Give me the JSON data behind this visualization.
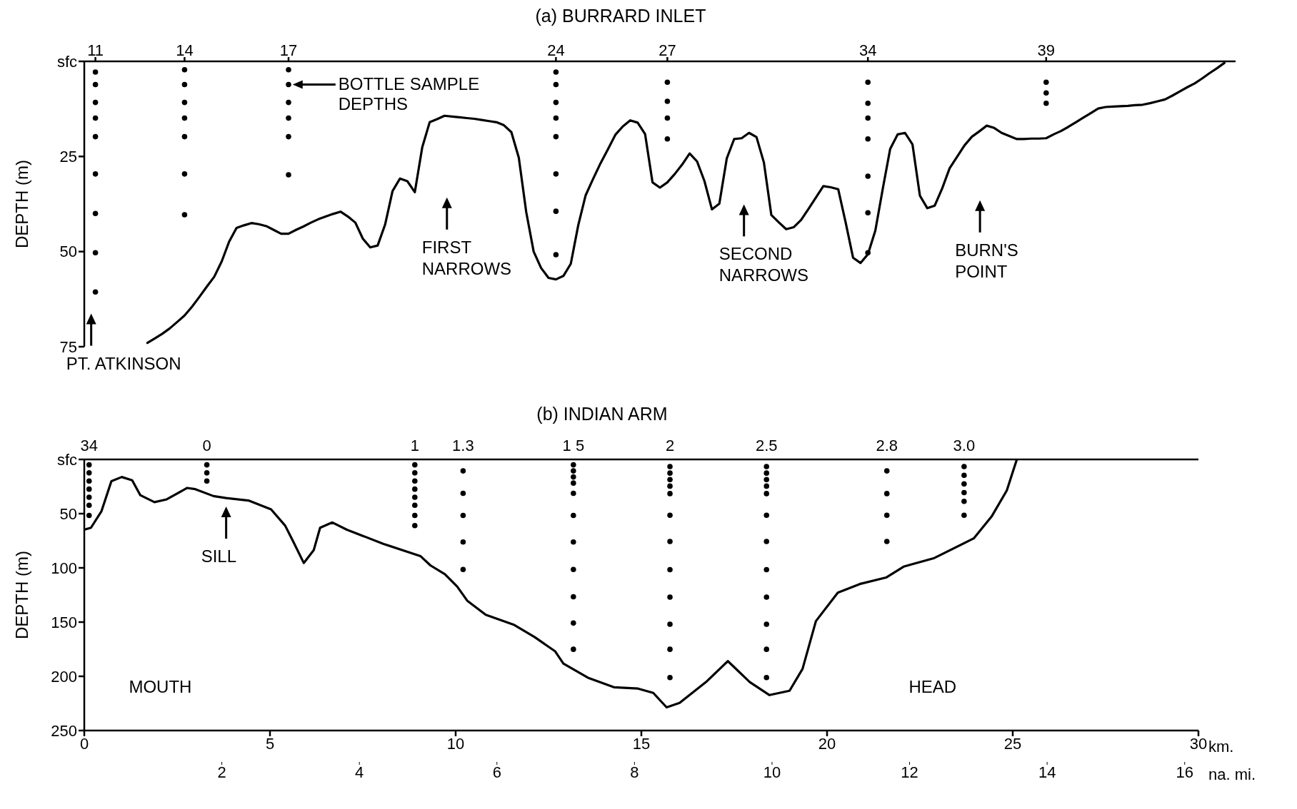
{
  "chart_data": [
    {
      "type": "line",
      "title": "(a) BURRARD INLET",
      "ylabel": "DEPTH (m)",
      "ylim": [
        75,
        0
      ],
      "yticks": [
        {
          "value": 0,
          "label": "sfc"
        },
        25,
        50,
        75
      ],
      "categories": [
        null,
        "11",
        null,
        null,
        null,
        null,
        null,
        null,
        null,
        null,
        null,
        null,
        null,
        "14",
        null,
        null,
        null,
        null,
        null,
        null,
        null,
        null,
        null,
        null,
        null,
        null,
        null,
        "17",
        null,
        null,
        null,
        null,
        null,
        null,
        null,
        null,
        null,
        null,
        null,
        null,
        null,
        null,
        null,
        null,
        null,
        null,
        null,
        null,
        null,
        null,
        null,
        null,
        null,
        null,
        null,
        null,
        null,
        null,
        null,
        null,
        null,
        null,
        null,
        "24",
        null,
        null,
        null,
        null,
        null,
        null,
        null,
        null,
        null,
        null,
        null,
        null,
        null,
        null,
        "27",
        null,
        null,
        null,
        null,
        null,
        null,
        null,
        null,
        null,
        null,
        null,
        null,
        null,
        null,
        null,
        null,
        null,
        null,
        null,
        null,
        null,
        null,
        null,
        null,
        null,
        null,
        "34",
        null,
        null,
        null,
        null,
        null,
        null,
        null,
        null,
        null,
        null,
        null,
        null,
        null,
        null,
        null,
        null,
        null,
        null,
        null,
        null,
        null,
        null,
        null,
        "39",
        null,
        null,
        null,
        null,
        null,
        null,
        null,
        null,
        null,
        null,
        null,
        null,
        null,
        null,
        null,
        null,
        null,
        null,
        null,
        null,
        null,
        null,
        null,
        null,
        null
      ],
      "annotations": [
        "BOTTLE  SAMPLE\nDEPTHS",
        "FIRST\nNARROWS",
        "SECOND\nNARROWS",
        "BURN'S\nPOINT",
        "PT.  ATKINSON"
      ],
      "series": [
        {
          "color": "#000000",
          "marker": "none",
          "values": [
            null,
            null,
            null,
            null,
            null,
            null,
            null,
            null,
            74.0,
            72.8,
            71.6,
            70.2,
            68.5,
            66.8,
            64.5,
            61.9,
            59.2,
            56.6,
            52.6,
            47.4,
            43.8,
            43.1,
            42.5,
            42.8,
            43.3,
            44.3,
            45.3,
            45.3,
            44.3,
            43.4,
            42.4,
            41.5,
            40.8,
            40.1,
            39.5,
            40.8,
            42.4,
            46.6,
            48.9,
            48.4,
            42.9,
            34.1,
            30.8,
            31.5,
            34.4,
            22.6,
            16.0,
            15.2,
            14.3,
            14.5,
            14.7,
            14.9,
            15.1,
            15.4,
            15.7,
            16.0,
            16.8,
            18.6,
            25.3,
            39.6,
            50.0,
            54.3,
            56.9,
            57.3,
            56.4,
            53.2,
            43.1,
            35.2,
            30.9,
            26.8,
            23.1,
            19.3,
            17.1,
            15.5,
            16.1,
            19.1,
            31.8,
            33.2,
            31.8,
            29.6,
            27.1,
            24.2,
            26.3,
            31.5,
            38.9,
            37.4,
            25.5,
            20.4,
            20.2,
            18.8,
            19.9,
            26.6,
            40.4,
            42.3,
            44.1,
            43.6,
            41.7,
            38.8,
            35.8,
            32.8,
            33.1,
            33.6,
            42.3,
            51.6,
            53.0,
            50.7,
            44.5,
            33.5,
            23.0,
            19.2,
            18.8,
            21.8,
            35.3,
            38.6,
            37.9,
            33.4,
            28.1,
            25.1,
            22.1,
            19.8,
            18.4,
            16.9,
            17.5,
            18.8,
            19.6,
            20.4,
            20.4,
            20.3,
            20.3,
            20.2,
            19.2,
            18.3,
            17.2,
            16.0,
            14.8,
            13.6,
            12.4,
            12.0,
            11.9,
            11.8,
            11.7,
            11.5,
            11.4,
            11.0,
            10.5,
            10.0,
            9.0,
            7.9,
            6.8,
            5.8,
            4.5,
            3.1,
            1.8,
            0.4,
            null
          ]
        },
        {
          "type": "scatter",
          "color": "#000000",
          "marker": "circle",
          "x": [
            "11",
            "11",
            "11",
            "11",
            "11",
            "11",
            "11",
            "11",
            "11",
            "14",
            "14",
            "14",
            "14",
            "14",
            "14",
            "14",
            "17",
            "17",
            "17",
            "17",
            "17",
            "17",
            "24",
            "24",
            "24",
            "24",
            "24",
            "24",
            "24",
            "24",
            "27",
            "27",
            "27",
            "27",
            "34",
            "34",
            "34",
            "34",
            "34",
            "34",
            "34",
            "39",
            "39",
            "39"
          ],
          "values": [
            2.8,
            6.1,
            10.8,
            14.9,
            19.8,
            29.6,
            40,
            50.3,
            60.6,
            2.2,
            6.1,
            10.8,
            14.9,
            19.8,
            29.6,
            40.3,
            2.2,
            6.1,
            10.8,
            14.9,
            19.8,
            29.8,
            2.8,
            6.1,
            10.8,
            14.9,
            19.8,
            29.6,
            39.4,
            50.8,
            5.5,
            10.5,
            14.9,
            20.4,
            5.5,
            11,
            14.9,
            20.4,
            30.2,
            39.8,
            50.3,
            5.5,
            8.3,
            11
          ]
        }
      ]
    },
    {
      "type": "line",
      "title": "(b) INDIAN ARM",
      "ylabel": "DEPTH (m)",
      "xlabel": "km.",
      "xlim": [
        0,
        30
      ],
      "xticks": [
        0,
        5,
        10,
        15,
        20,
        25,
        30
      ],
      "ylim": [
        250,
        0
      ],
      "yticks": [
        {
          "value": 0,
          "label": "sfc"
        },
        50,
        100,
        150,
        200,
        250
      ],
      "x2label": "na. mi.",
      "x2lim": [
        0,
        16.2
      ],
      "x2ticks": [
        2,
        4,
        6,
        8,
        10,
        12,
        14,
        16
      ],
      "annotations": [
        {
          "text": "SILL",
          "x": 3.82,
          "y": 35.6
        },
        "34",
        "0",
        "1",
        "1.3",
        "1 5",
        "2",
        "2.5",
        "2.8",
        "3.0",
        "MOUTH",
        "HEAD"
      ],
      "series": [
        {
          "color": "#000000",
          "marker": "none",
          "x": [
            0,
            0.18,
            0.46,
            0.73,
            1.01,
            1.29,
            1.51,
            1.89,
            2.22,
            2.77,
            2.99,
            3.48,
            3.82,
            4.42,
            5.03,
            5.41,
            5.63,
            5.91,
            6.18,
            6.35,
            6.68,
            7.07,
            8.06,
            9.05,
            9.32,
            9.71,
            10.04,
            10.31,
            10.81,
            11.58,
            12.13,
            12.68,
            12.9,
            13.56,
            14.26,
            14.91,
            15.32,
            15.68,
            16.03,
            16.74,
            17.33,
            17.92,
            18.45,
            18.99,
            19.34,
            19.7,
            20.29,
            20.88,
            21.59,
            22.06,
            22.89,
            23.95,
            24.43,
            24.84,
            25.11
          ],
          "values": [
            64.8,
            63,
            48,
            20,
            16.2,
            19.2,
            33,
            39.4,
            36.8,
            26.3,
            27.4,
            33.8,
            35.6,
            37.9,
            46.1,
            61.1,
            76,
            95.5,
            83.5,
            63,
            58.1,
            64.8,
            77.9,
            89.1,
            97.7,
            105.9,
            117.2,
            130.2,
            143.3,
            152.7,
            163.9,
            177,
            188.2,
            201.3,
            210.1,
            211.3,
            215.3,
            228.6,
            224.5,
            205.3,
            186,
            205.3,
            217.3,
            213.3,
            193.2,
            149.1,
            122.9,
            114.9,
            108.9,
            98.9,
            90.9,
            72.8,
            52.7,
            28.6,
            0
          ]
        },
        {
          "type": "scatter",
          "color": "#000000",
          "marker": "circle",
          "x": [
            0.13,
            0.13,
            0.13,
            0.13,
            0.13,
            0.13,
            0.13,
            3.3,
            3.3,
            3.3,
            8.9,
            8.9,
            8.9,
            8.9,
            8.9,
            8.9,
            8.9,
            8.9,
            10.2,
            10.2,
            10.2,
            10.2,
            10.2,
            13.17,
            13.17,
            13.17,
            13.17,
            13.17,
            13.17,
            13.17,
            13.17,
            13.17,
            13.17,
            13.17,
            15.77,
            15.77,
            15.77,
            15.77,
            15.77,
            15.77,
            15.77,
            15.77,
            15.77,
            15.77,
            15.77,
            15.77,
            18.37,
            18.37,
            18.37,
            18.37,
            18.37,
            18.37,
            18.37,
            18.37,
            18.37,
            18.37,
            18.37,
            18.37,
            21.61,
            21.61,
            21.61,
            21.61,
            23.69,
            23.69,
            23.69,
            23.69,
            23.69,
            23.69
          ],
          "values": [
            5,
            12.4,
            19.9,
            27.4,
            34.9,
            42.3,
            51.7,
            5,
            12.4,
            19.9,
            5,
            12.4,
            19.9,
            27.4,
            34.9,
            42.3,
            51.7,
            61,
            10.6,
            31.2,
            51.7,
            76.1,
            101.5,
            5,
            10.6,
            16.2,
            21.8,
            31.2,
            51.7,
            76.1,
            101.5,
            126.6,
            150.9,
            175.1,
            6.6,
            12.6,
            18.6,
            24.6,
            31.5,
            51.5,
            75.6,
            101.7,
            127,
            152,
            175.1,
            201.2,
            6.6,
            12.6,
            18.6,
            24.6,
            31.5,
            51.5,
            75.6,
            101.7,
            127,
            152,
            175.1,
            201.2,
            10.6,
            31.5,
            51.5,
            75.6,
            6.6,
            14.6,
            22.6,
            30.6,
            38.6,
            51.5
          ]
        }
      ]
    }
  ]
}
